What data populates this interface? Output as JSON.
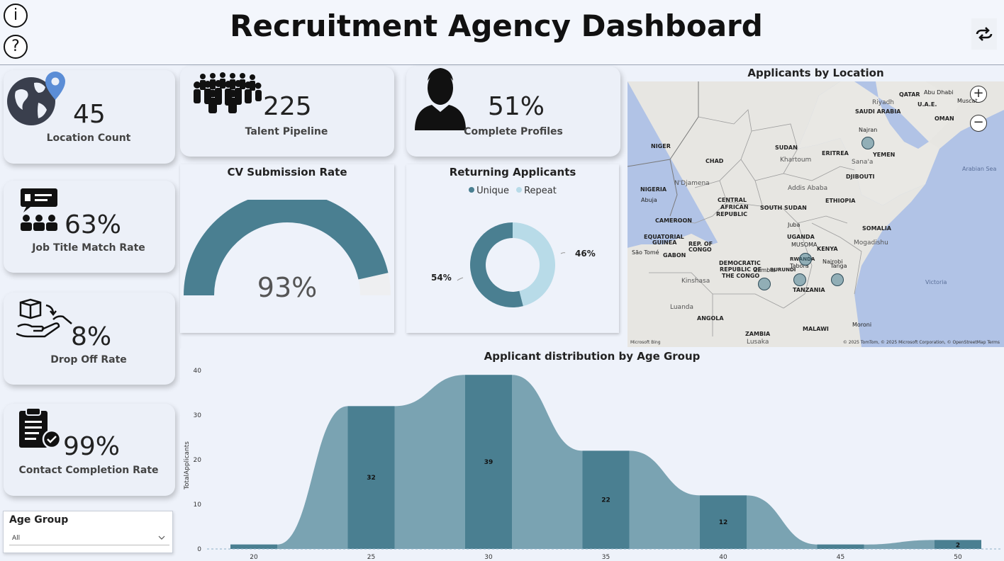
{
  "header": {
    "title": "Recruitment Agency Dashboard",
    "info_glyph": "i",
    "help_glyph": "?"
  },
  "colors": {
    "primary": "#4a7f91",
    "light": "#b8dbe8",
    "area": "#7aa3b2",
    "gauge_bg": "#eeeff1"
  },
  "kpis": {
    "location_count": {
      "value": "45",
      "label": "Location Count",
      "icon": "globe-pin-icon"
    },
    "talent_pipeline": {
      "value": "225",
      "label": "Talent Pipeline",
      "icon": "crowd-icon"
    },
    "complete_profiles": {
      "value": "51%",
      "label": "Complete Profiles",
      "icon": "person-icon"
    },
    "job_title_match": {
      "value": "63%",
      "label": "Job Title Match Rate",
      "icon": "team-chat-icon"
    },
    "drop_off": {
      "value": "8%",
      "label": "Drop Off Rate",
      "icon": "hand-box-icon"
    },
    "contact_completion": {
      "value": "99%",
      "label": "Contact Completion Rate",
      "icon": "clipboard-check-icon"
    }
  },
  "gauge": {
    "title": "CV Submission Rate",
    "value_label": "93%",
    "value": 0.93
  },
  "donut": {
    "title": "Returning Applicants",
    "legend": [
      "Unique",
      "Repeat"
    ],
    "unique_label": "54%",
    "repeat_label": "46%",
    "unique": 54,
    "repeat": 46
  },
  "map": {
    "title": "Applicants by Location",
    "zoom_in": "+",
    "zoom_out": "−",
    "credit": "© 2025 TomTom, © 2025 Microsoft Corporation, © OpenStreetMap  Terms",
    "bing": "Microsoft Bing",
    "labels": {
      "qatar": "QATAR",
      "abu_dhabi": "Abu Dhabi",
      "uae": "U.A.E.",
      "muscat": "Muscat",
      "riyadh": "Riyadh",
      "saudi": "SAUDI ARABIA",
      "oman": "OMAN",
      "niger": "NIGER",
      "sudan": "SUDAN",
      "khartoum": "Khartoum",
      "eritrea": "ERITREA",
      "najran": "Najran",
      "yemen": "YEMEN",
      "sanaa": "Sana'a",
      "chad": "CHAD",
      "djibouti": "DJIBOUTI",
      "arabian_sea": "Arabian Sea",
      "nigeria": "NIGERIA",
      "ndjamena": "N'Djamena",
      "abuja": "Abuja",
      "addis": "Addis Ababa",
      "car1": "CENTRAL",
      "car2": "AFRICAN",
      "car3": "REPUBLIC",
      "ethiopia": "ETHIOPIA",
      "cameroon": "CAMEROON",
      "south_sudan": "SOUTH SUDAN",
      "juba": "Juba",
      "somalia": "SOMALIA",
      "eq1": "EQUATORIAL",
      "eq2": "GUINEA",
      "gabon": "GABON",
      "roc1": "REP. OF",
      "roc2": "CONGO",
      "uganda": "UGANDA",
      "musoma": "MUSOMA",
      "kenya": "KENYA",
      "mogadishu": "Mogadishu",
      "sao_tome": "São Tomé",
      "rwanda": "RWANDA",
      "nairobi": "Nairobi",
      "drc1": "DEMOCRATIC",
      "drc2": "REPUBLIC OF",
      "drc3": "THE CONGO",
      "zambia_city": "Zambia",
      "burundi": "BURUNDI",
      "tabora": "Tabora",
      "tanga": "Tanga",
      "victoria": "Victoria",
      "kinshasa": "Kinshasa",
      "tanzania": "TANZANIA",
      "luanda": "Luanda",
      "angola": "ANGOLA",
      "moroni": "Moroni",
      "zambia": "ZAMBIA",
      "malawi": "MALAWI",
      "lusaka": "Lusaka"
    }
  },
  "slicer": {
    "title": "Age Group",
    "value": "All"
  },
  "chart_data": {
    "type": "bar",
    "title": "Applicant distribution by Age Group",
    "xlabel": "",
    "ylabel": "TotalApplicants",
    "categories": [
      "20",
      "25",
      "30",
      "35",
      "40",
      "45",
      "50"
    ],
    "values": [
      1,
      32,
      39,
      22,
      12,
      1,
      2
    ],
    "data_labels": [
      "",
      "32",
      "39",
      "22",
      "12",
      "",
      "2"
    ],
    "ylim": [
      0,
      40
    ],
    "yticks": [
      0,
      10,
      20,
      30,
      40
    ],
    "yticks_labels": [
      "0",
      "10",
      "20",
      "30",
      "40"
    ]
  }
}
